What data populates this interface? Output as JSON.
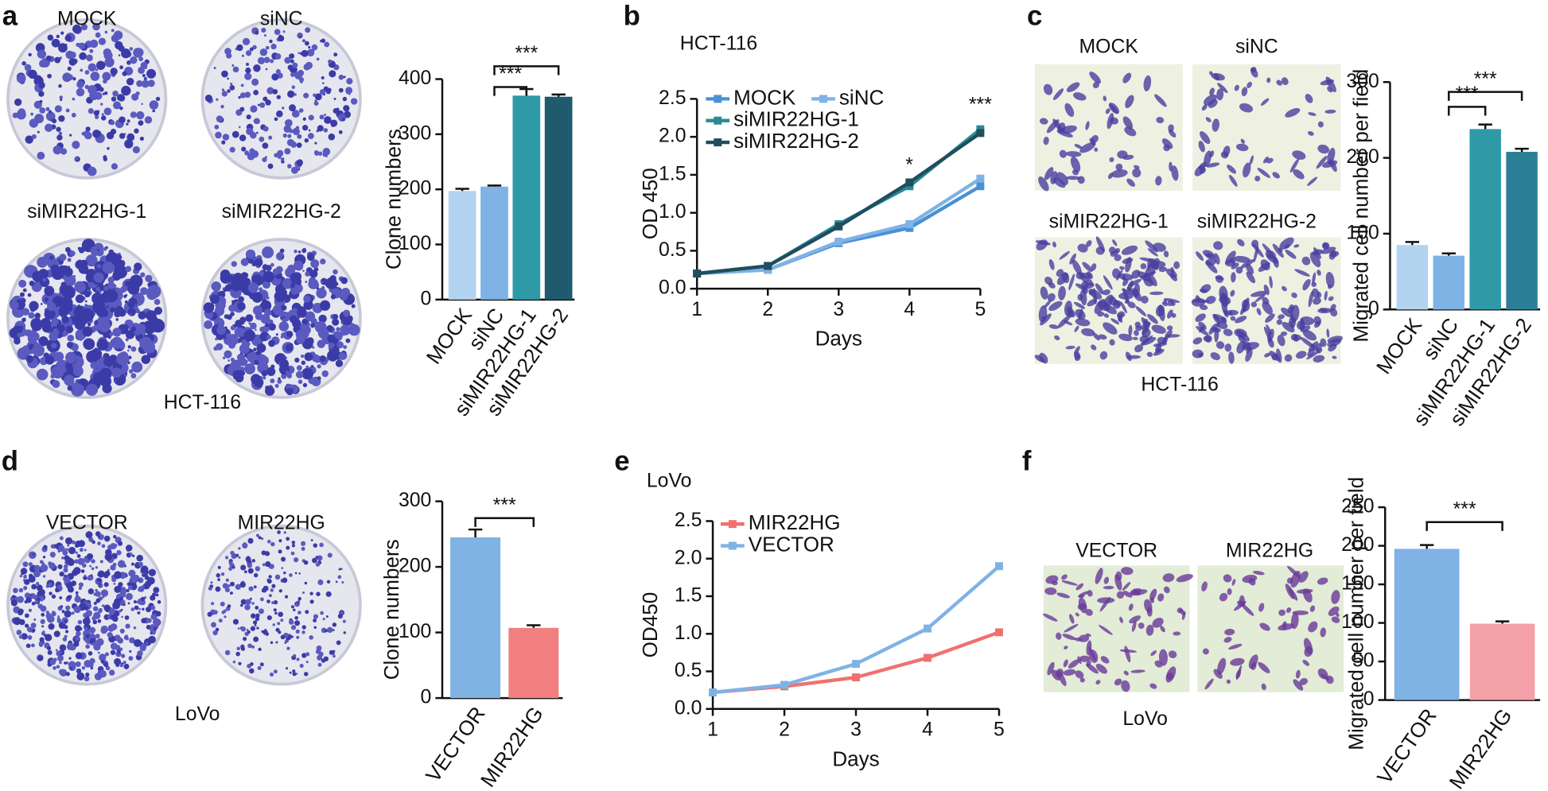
{
  "panels": [
    {
      "letter": "a",
      "images": [
        "MOCK",
        "siNC",
        "siMIR22HG-1",
        "siMIR22HG-2"
      ],
      "caption": "HCT-116"
    },
    {
      "letter": "b"
    },
    {
      "letter": "c",
      "images": [
        "MOCK",
        "siNC",
        "siMIR22HG-1",
        "siMIR22HG-2"
      ],
      "caption": "HCT-116"
    },
    {
      "letter": "d",
      "images": [
        "VECTOR",
        "MIR22HG"
      ],
      "caption": "LoVo"
    },
    {
      "letter": "e"
    },
    {
      "letter": "f",
      "images": [
        "VECTOR",
        "MIR22HG"
      ],
      "caption": "LoVo"
    }
  ],
  "chart_data": [
    {
      "type": "bar",
      "ylabel": "Clone numbers",
      "categories": [
        "MOCK",
        "siNC",
        "siMIR22HG-1",
        "siMIR22HG-2"
      ],
      "values": [
        197,
        205,
        370,
        368
      ],
      "errors": [
        4,
        2,
        12,
        4
      ],
      "colors": [
        "#b3d4f0",
        "#7fb2e5",
        "#2e9aa8",
        "#1f5a6e"
      ],
      "ylim": [
        0,
        400
      ],
      "yticks": [
        0,
        100,
        200,
        300,
        400
      ],
      "annotations": [
        "***",
        "***"
      ]
    },
    {
      "type": "line",
      "title": "HCT-116",
      "xlabel": "Days",
      "ylabel": "OD 450",
      "x": [
        1,
        2,
        3,
        4,
        5
      ],
      "series": [
        {
          "name": "MOCK",
          "color": "#4a90d6",
          "values": [
            0.2,
            0.25,
            0.6,
            0.8,
            1.35
          ]
        },
        {
          "name": "siNC",
          "color": "#7fb2e5",
          "values": [
            0.2,
            0.25,
            0.62,
            0.85,
            1.45
          ]
        },
        {
          "name": "siMIR22HG-1",
          "color": "#2a8a94",
          "values": [
            0.2,
            0.3,
            0.85,
            1.35,
            2.1
          ]
        },
        {
          "name": "siMIR22HG-2",
          "color": "#1f4e5e",
          "values": [
            0.2,
            0.3,
            0.82,
            1.4,
            2.05
          ]
        }
      ],
      "xlim": [
        1,
        5
      ],
      "xticks": [
        1,
        2,
        3,
        4,
        5
      ],
      "ylim": [
        0,
        2.5
      ],
      "yticks": [
        {
          "value": 0,
          "label": "0.0"
        },
        0.5,
        {
          "value": 1,
          "label": "1.0"
        },
        1.5,
        {
          "value": 2,
          "label": "2.0"
        },
        2.5
      ],
      "annotations": [
        "*",
        "***"
      ]
    },
    {
      "type": "bar",
      "ylabel": "Migrated cell number per field",
      "categories": [
        "MOCK",
        "siNC",
        "siMIR22HG-1",
        "siMIR22HG-2"
      ],
      "values": [
        85,
        71,
        238,
        208
      ],
      "errors": [
        4,
        3,
        6,
        4
      ],
      "colors": [
        "#b3d4f0",
        "#7fb2e5",
        "#2e9aa8",
        "#2a7f96"
      ],
      "ylim": [
        0,
        300
      ],
      "yticks": [
        0,
        100,
        200,
        300
      ],
      "annotations": [
        "***",
        "***"
      ]
    },
    {
      "type": "bar",
      "ylabel": "Clone numbers",
      "categories": [
        "VECTOR",
        "MIR22HG"
      ],
      "values": [
        245,
        107
      ],
      "errors": [
        12,
        4
      ],
      "colors": [
        "#7fb2e5",
        "#f28080"
      ],
      "ylim": [
        0,
        300
      ],
      "yticks": [
        0,
        100,
        200,
        300
      ],
      "annotations": [
        "***"
      ]
    },
    {
      "type": "line",
      "title": "LoVo",
      "xlabel": "Days",
      "ylabel": "OD450",
      "x": [
        1,
        2,
        3,
        4,
        5
      ],
      "series": [
        {
          "name": "MIR22HG",
          "color": "#f07070",
          "values": [
            0.22,
            0.3,
            0.42,
            0.68,
            1.02
          ]
        },
        {
          "name": "VECTOR",
          "color": "#7fb2e5",
          "values": [
            0.22,
            0.32,
            0.6,
            1.07,
            1.9
          ]
        }
      ],
      "xlim": [
        1,
        5
      ],
      "xticks": [
        1,
        2,
        3,
        4,
        5
      ],
      "ylim": [
        0,
        2.5
      ],
      "yticks": [
        {
          "value": 0,
          "label": "0.0"
        },
        0.5,
        {
          "value": 1,
          "label": "1.0"
        },
        1.5,
        {
          "value": 2,
          "label": "2.0"
        },
        2.5
      ]
    },
    {
      "type": "bar",
      "ylabel": "Migrated cell number per field",
      "categories": [
        "VECTOR",
        "MIR22HG"
      ],
      "values": [
        196,
        99
      ],
      "errors": [
        5,
        3
      ],
      "colors": [
        "#7fb2e5",
        "#f4a0a8"
      ],
      "ylim": [
        0,
        250
      ],
      "yticks": [
        0,
        50,
        100,
        150,
        200,
        250
      ],
      "annotations": [
        "***"
      ]
    }
  ]
}
